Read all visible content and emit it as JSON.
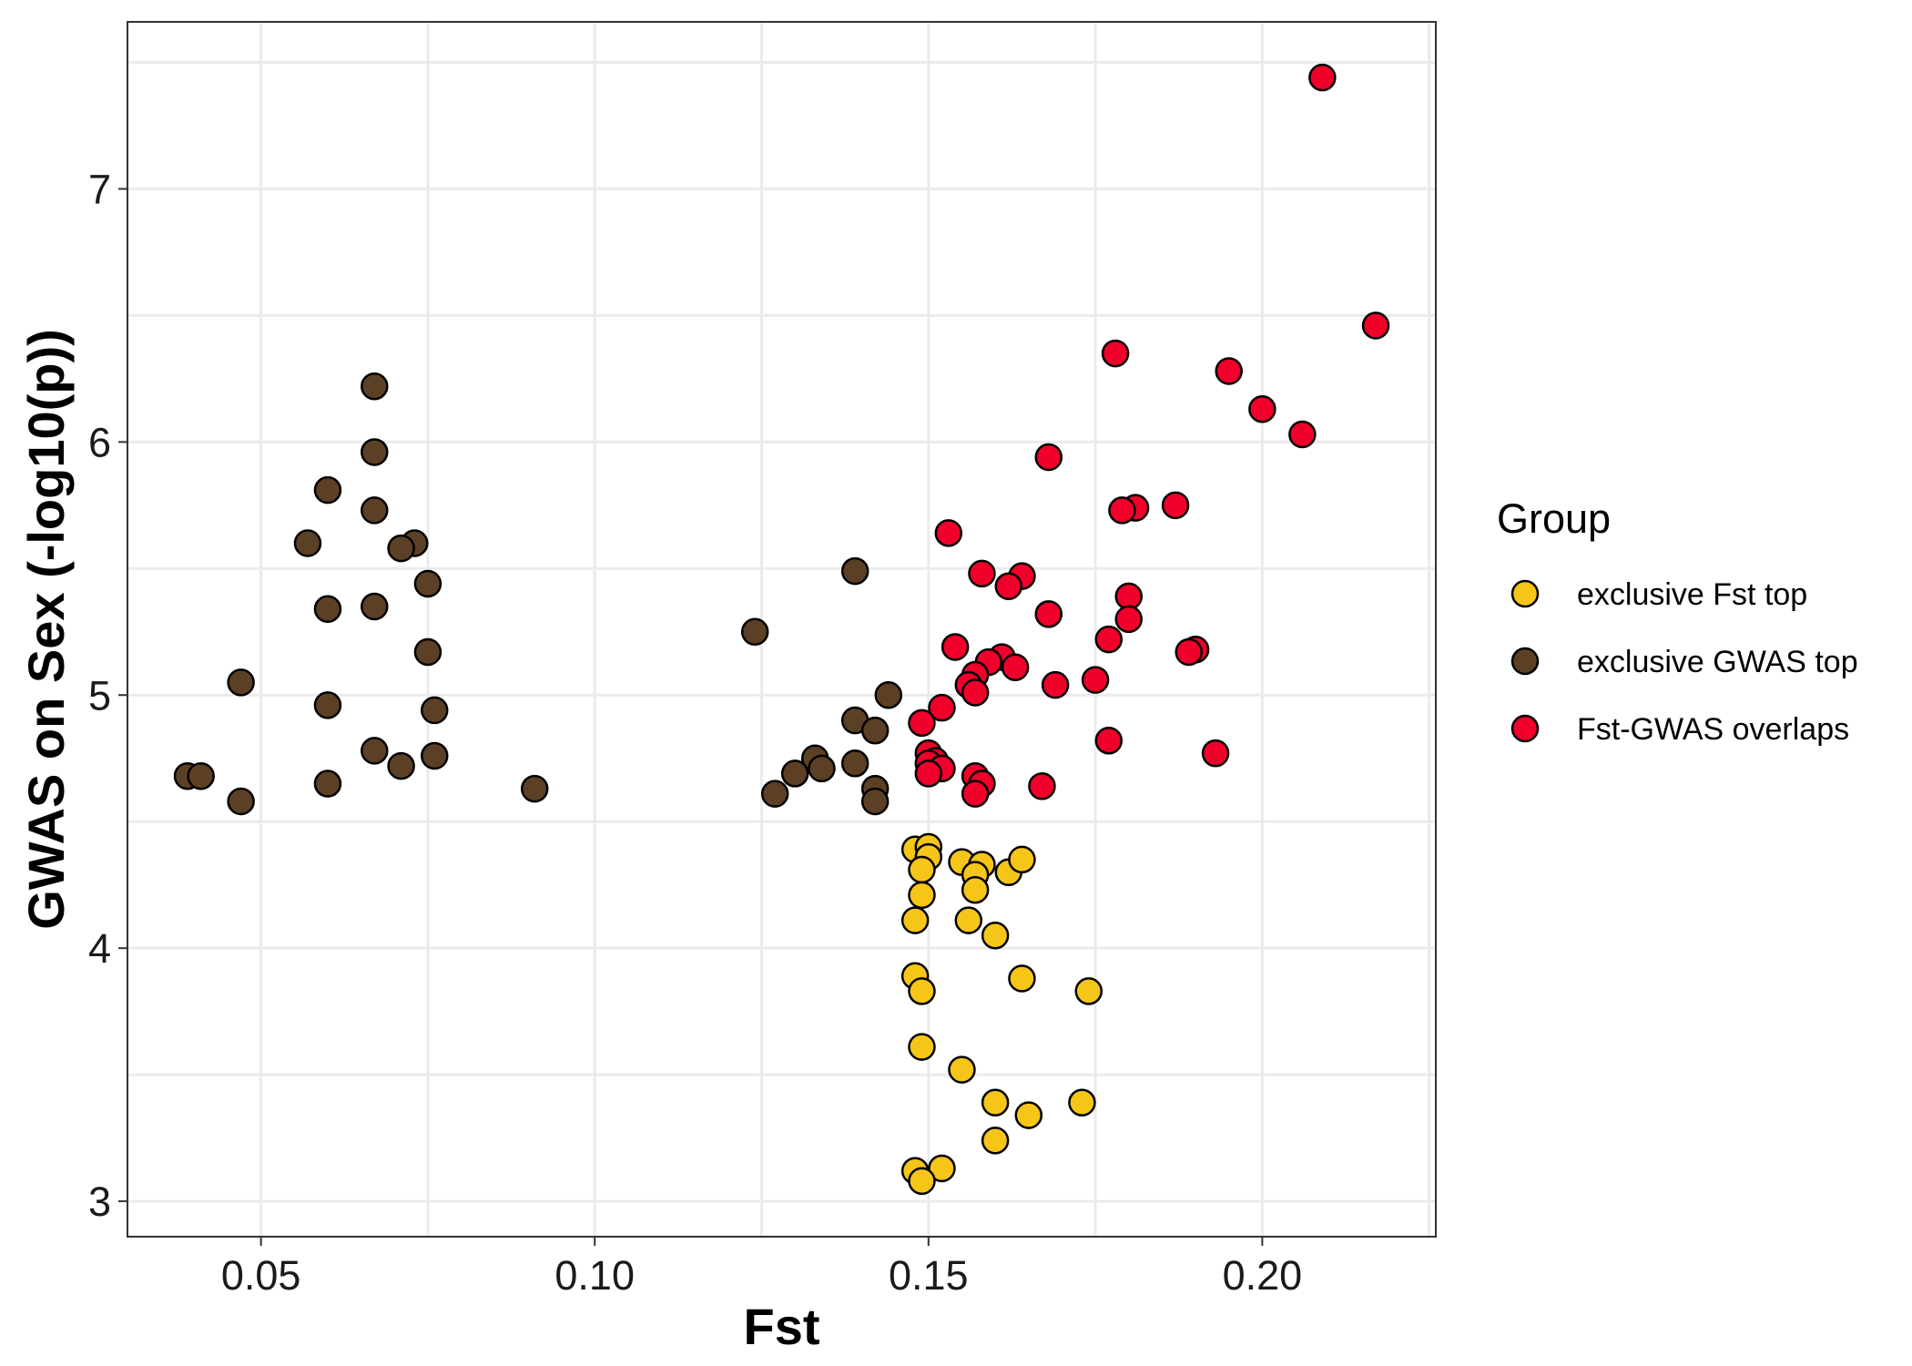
{
  "chart_data": {
    "type": "scatter",
    "title": "",
    "xlabel": "Fst",
    "ylabel": "GWAS on Sex (-log10(p))",
    "xlim": [
      0.03,
      0.226
    ],
    "ylim": [
      2.86,
      7.66
    ],
    "x_ticks": [
      0.05,
      0.1,
      0.15,
      0.2
    ],
    "x_tick_labels": [
      "0.05",
      "0.10",
      "0.15",
      "0.20"
    ],
    "y_ticks": [
      3,
      4,
      5,
      6,
      7
    ],
    "y_tick_labels": [
      "3",
      "4",
      "5",
      "6",
      "7"
    ],
    "grid": true,
    "legend": {
      "title": "Group",
      "position": "right"
    },
    "series": [
      {
        "name": "exclusive Fst top",
        "color": "#f5c518",
        "points": [
          [
            0.148,
            4.39
          ],
          [
            0.15,
            4.4
          ],
          [
            0.15,
            4.36
          ],
          [
            0.149,
            4.31
          ],
          [
            0.155,
            4.34
          ],
          [
            0.158,
            4.33
          ],
          [
            0.157,
            4.29
          ],
          [
            0.162,
            4.3
          ],
          [
            0.164,
            4.35
          ],
          [
            0.157,
            4.23
          ],
          [
            0.149,
            4.21
          ],
          [
            0.148,
            4.11
          ],
          [
            0.156,
            4.11
          ],
          [
            0.16,
            4.05
          ],
          [
            0.148,
            3.89
          ],
          [
            0.149,
            3.83
          ],
          [
            0.164,
            3.88
          ],
          [
            0.174,
            3.83
          ],
          [
            0.149,
            3.61
          ],
          [
            0.155,
            3.52
          ],
          [
            0.16,
            3.39
          ],
          [
            0.173,
            3.39
          ],
          [
            0.165,
            3.34
          ],
          [
            0.16,
            3.24
          ],
          [
            0.152,
            3.13
          ],
          [
            0.148,
            3.12
          ],
          [
            0.149,
            3.08
          ]
        ]
      },
      {
        "name": "exclusive GWAS top",
        "color": "#5c4026",
        "points": [
          [
            0.067,
            6.22
          ],
          [
            0.067,
            5.96
          ],
          [
            0.06,
            5.81
          ],
          [
            0.067,
            5.73
          ],
          [
            0.057,
            5.6
          ],
          [
            0.073,
            5.6
          ],
          [
            0.071,
            5.58
          ],
          [
            0.075,
            5.44
          ],
          [
            0.067,
            5.35
          ],
          [
            0.06,
            5.34
          ],
          [
            0.075,
            5.17
          ],
          [
            0.047,
            5.05
          ],
          [
            0.06,
            4.96
          ],
          [
            0.076,
            4.94
          ],
          [
            0.067,
            4.78
          ],
          [
            0.076,
            4.76
          ],
          [
            0.071,
            4.72
          ],
          [
            0.039,
            4.68
          ],
          [
            0.041,
            4.68
          ],
          [
            0.06,
            4.65
          ],
          [
            0.047,
            4.58
          ],
          [
            0.091,
            4.63
          ],
          [
            0.139,
            5.49
          ],
          [
            0.124,
            5.25
          ],
          [
            0.144,
            5.0
          ],
          [
            0.139,
            4.9
          ],
          [
            0.142,
            4.86
          ],
          [
            0.133,
            4.75
          ],
          [
            0.139,
            4.73
          ],
          [
            0.134,
            4.71
          ],
          [
            0.13,
            4.69
          ],
          [
            0.142,
            4.63
          ],
          [
            0.127,
            4.61
          ],
          [
            0.142,
            4.58
          ]
        ]
      },
      {
        "name": "Fst-GWAS overlaps",
        "color": "#f0002a",
        "points": [
          [
            0.209,
            7.44
          ],
          [
            0.217,
            6.46
          ],
          [
            0.178,
            6.35
          ],
          [
            0.195,
            6.28
          ],
          [
            0.2,
            6.13
          ],
          [
            0.206,
            6.03
          ],
          [
            0.168,
            5.94
          ],
          [
            0.187,
            5.75
          ],
          [
            0.181,
            5.74
          ],
          [
            0.179,
            5.73
          ],
          [
            0.153,
            5.64
          ],
          [
            0.158,
            5.48
          ],
          [
            0.164,
            5.47
          ],
          [
            0.162,
            5.43
          ],
          [
            0.18,
            5.39
          ],
          [
            0.168,
            5.32
          ],
          [
            0.18,
            5.3
          ],
          [
            0.177,
            5.22
          ],
          [
            0.154,
            5.19
          ],
          [
            0.19,
            5.18
          ],
          [
            0.189,
            5.17
          ],
          [
            0.161,
            5.15
          ],
          [
            0.159,
            5.13
          ],
          [
            0.163,
            5.11
          ],
          [
            0.157,
            5.08
          ],
          [
            0.175,
            5.06
          ],
          [
            0.169,
            5.04
          ],
          [
            0.156,
            5.04
          ],
          [
            0.157,
            5.01
          ],
          [
            0.152,
            4.95
          ],
          [
            0.149,
            4.89
          ],
          [
            0.177,
            4.82
          ],
          [
            0.193,
            4.77
          ],
          [
            0.15,
            4.77
          ],
          [
            0.151,
            4.74
          ],
          [
            0.15,
            4.73
          ],
          [
            0.152,
            4.71
          ],
          [
            0.15,
            4.69
          ],
          [
            0.157,
            4.68
          ],
          [
            0.158,
            4.65
          ],
          [
            0.167,
            4.64
          ],
          [
            0.157,
            4.61
          ]
        ]
      }
    ]
  }
}
